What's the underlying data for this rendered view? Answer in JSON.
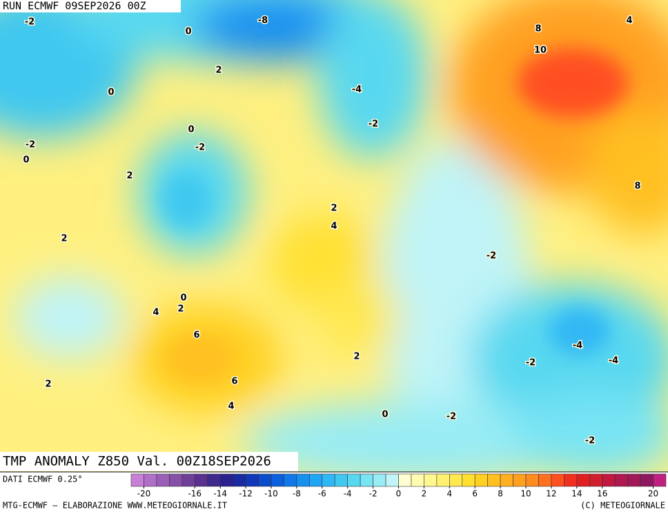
{
  "header": {
    "run": "RUN ECMWF 09SEP2026 00Z",
    "title": "TMP ANOMALY Z850 Val. 00Z18SEP2026"
  },
  "contour_labels": [
    -2,
    -8,
    0,
    4,
    8,
    10,
    2,
    0,
    -4,
    -2,
    0,
    -2,
    -2,
    0,
    2,
    8,
    2,
    4,
    2,
    -2,
    0,
    2,
    4,
    6,
    -4,
    2,
    -4,
    -2,
    6,
    2,
    4,
    0,
    -2,
    -2
  ],
  "colorbar": {
    "source": "DATI ECMWF 0.25°",
    "lim": [
      -21,
      21
    ],
    "ticks": [
      -20,
      -16,
      -14,
      -12,
      -10,
      -8,
      -6,
      -4,
      -2,
      0,
      2,
      4,
      6,
      8,
      10,
      12,
      14,
      16,
      20
    ],
    "colors": [
      "#c87fd8",
      "#b070c8",
      "#9b5fb8",
      "#8650a8",
      "#704098",
      "#5a3090",
      "#40288c",
      "#2a2090",
      "#1a2aa0",
      "#1038b8",
      "#0a4ccc",
      "#0a60dc",
      "#1078e8",
      "#1890f0",
      "#20a4f4",
      "#30b8f4",
      "#40c8f0",
      "#58d8f0",
      "#78e4f4",
      "#98ecf4",
      "#c0f4f8",
      "#ffffd0",
      "#fffcb0",
      "#fff890",
      "#fff070",
      "#ffe850",
      "#ffe030",
      "#ffd020",
      "#ffc020",
      "#ffb020",
      "#ffa020",
      "#ff8c20",
      "#ff7020",
      "#ff5020",
      "#f03020",
      "#e02020",
      "#d02030",
      "#c01840",
      "#b01850",
      "#a01858",
      "#901860",
      "#c02080"
    ]
  },
  "footer": {
    "left": "MTG-ECMWF – ELABORAZIONE WWW.METEOGIORNALE.IT",
    "right": "(C) METEOGIORNALE"
  }
}
